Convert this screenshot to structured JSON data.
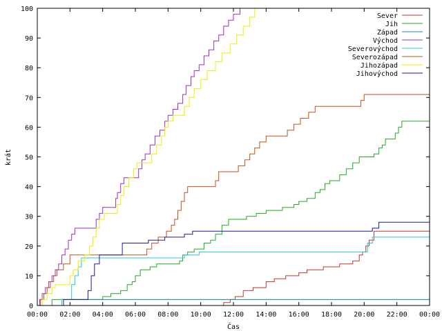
{
  "chart_data": {
    "type": "line",
    "xlabel": "Čas",
    "ylabel": "krát",
    "xlim": [
      0,
      24
    ],
    "ylim": [
      0,
      100
    ],
    "x_ticks": [
      {
        "v": 0,
        "label": "00:00"
      },
      {
        "v": 2,
        "label": "02:00"
      },
      {
        "v": 4,
        "label": "04:00"
      },
      {
        "v": 6,
        "label": "06:00"
      },
      {
        "v": 8,
        "label": "08:00"
      },
      {
        "v": 10,
        "label": "10:00"
      },
      {
        "v": 12,
        "label": "12:00"
      },
      {
        "v": 14,
        "label": "14:00"
      },
      {
        "v": 16,
        "label": "16:00"
      },
      {
        "v": 18,
        "label": "18:00"
      },
      {
        "v": 20,
        "label": "20:00"
      },
      {
        "v": 22,
        "label": "22:00"
      },
      {
        "v": 24,
        "label": "00:00"
      }
    ],
    "y_ticks": [
      0,
      10,
      20,
      30,
      40,
      50,
      60,
      70,
      80,
      90,
      100
    ],
    "grid": false,
    "legend_position": "top-right",
    "series": [
      {
        "name": "Sever",
        "color": "#c0392b",
        "points": [
          [
            11.2,
            0
          ],
          [
            11.4,
            1
          ],
          [
            11.8,
            2
          ],
          [
            12.1,
            3
          ],
          [
            12.6,
            5
          ],
          [
            13.2,
            6
          ],
          [
            14.0,
            8
          ],
          [
            14.5,
            9
          ],
          [
            15.2,
            10
          ],
          [
            16.0,
            11
          ],
          [
            16.5,
            12
          ],
          [
            17.5,
            13
          ],
          [
            18.5,
            14
          ],
          [
            19.3,
            15
          ],
          [
            19.7,
            17
          ],
          [
            19.9,
            18
          ],
          [
            20.1,
            20
          ],
          [
            20.3,
            22
          ],
          [
            20.6,
            25
          ],
          [
            24,
            25
          ]
        ]
      },
      {
        "name": "Jih",
        "color": "#22aa22",
        "points": [
          [
            0.6,
            0
          ],
          [
            0.9,
            2
          ],
          [
            3.8,
            2
          ],
          [
            4.0,
            3
          ],
          [
            4.5,
            4
          ],
          [
            5.1,
            5
          ],
          [
            5.5,
            7
          ],
          [
            5.8,
            8
          ],
          [
            6.0,
            10
          ],
          [
            6.3,
            12
          ],
          [
            6.9,
            13
          ],
          [
            7.3,
            14
          ],
          [
            8.7,
            15
          ],
          [
            8.9,
            17
          ],
          [
            9.2,
            18
          ],
          [
            9.6,
            19
          ],
          [
            10.2,
            21
          ],
          [
            10.6,
            22
          ],
          [
            10.9,
            24
          ],
          [
            11.3,
            27
          ],
          [
            11.7,
            29
          ],
          [
            12.8,
            30
          ],
          [
            13.4,
            31
          ],
          [
            14.0,
            32
          ],
          [
            15.0,
            33
          ],
          [
            15.7,
            34
          ],
          [
            16.0,
            35
          ],
          [
            16.5,
            36
          ],
          [
            17.0,
            38
          ],
          [
            17.3,
            39
          ],
          [
            17.6,
            41
          ],
          [
            17.9,
            42
          ],
          [
            18.5,
            44
          ],
          [
            18.9,
            46
          ],
          [
            19.3,
            48
          ],
          [
            19.7,
            50
          ],
          [
            20.6,
            51
          ],
          [
            20.9,
            53
          ],
          [
            21.1,
            54
          ],
          [
            21.3,
            56
          ],
          [
            21.9,
            58
          ],
          [
            22.1,
            60
          ],
          [
            22.3,
            62
          ],
          [
            24,
            62
          ]
        ]
      },
      {
        "name": "Západ",
        "color": "#0a8aa8",
        "points": [
          [
            1.4,
            0
          ],
          [
            1.5,
            2
          ],
          [
            24,
            2
          ]
        ]
      },
      {
        "name": "Východ",
        "color": "#9b30c0",
        "points": [
          [
            0,
            0
          ],
          [
            0.15,
            2
          ],
          [
            0.3,
            4
          ],
          [
            0.5,
            6
          ],
          [
            0.7,
            8
          ],
          [
            0.9,
            10
          ],
          [
            1.1,
            12
          ],
          [
            1.3,
            14
          ],
          [
            1.5,
            17
          ],
          [
            1.7,
            19
          ],
          [
            1.9,
            22
          ],
          [
            2.1,
            24
          ],
          [
            2.3,
            26
          ],
          [
            3.4,
            26
          ],
          [
            3.6,
            29
          ],
          [
            3.8,
            31
          ],
          [
            4.0,
            33
          ],
          [
            4.6,
            33
          ],
          [
            4.8,
            36
          ],
          [
            4.9,
            38
          ],
          [
            5.1,
            41
          ],
          [
            5.3,
            43
          ],
          [
            6.0,
            43
          ],
          [
            6.2,
            46
          ],
          [
            6.4,
            49
          ],
          [
            6.6,
            51
          ],
          [
            6.9,
            54
          ],
          [
            7.2,
            57
          ],
          [
            7.5,
            59
          ],
          [
            7.8,
            62
          ],
          [
            8.0,
            64
          ],
          [
            8.3,
            66
          ],
          [
            8.6,
            68
          ],
          [
            8.9,
            71
          ],
          [
            9.1,
            74
          ],
          [
            9.4,
            77
          ],
          [
            9.6,
            79
          ],
          [
            9.9,
            81
          ],
          [
            10.2,
            84
          ],
          [
            10.5,
            86
          ],
          [
            10.8,
            89
          ],
          [
            11.1,
            91
          ],
          [
            11.4,
            94
          ],
          [
            11.7,
            96
          ],
          [
            12.0,
            98
          ],
          [
            12.4,
            100
          ]
        ]
      },
      {
        "name": "Severovýchod",
        "color": "#22c8d8",
        "points": [
          [
            1.4,
            0
          ],
          [
            1.5,
            2
          ],
          [
            1.9,
            2
          ],
          [
            2.1,
            7
          ],
          [
            2.3,
            10
          ],
          [
            2.5,
            13
          ],
          [
            2.7,
            16
          ],
          [
            8.8,
            16
          ],
          [
            9.0,
            17
          ],
          [
            9.9,
            18
          ],
          [
            19.9,
            18
          ],
          [
            20.2,
            21
          ],
          [
            20.5,
            23
          ],
          [
            24,
            23
          ]
        ]
      },
      {
        "name": "Severozápad",
        "color": "#c0501c",
        "points": [
          [
            0,
            0
          ],
          [
            0.2,
            2
          ],
          [
            0.4,
            4
          ],
          [
            0.6,
            6
          ],
          [
            0.8,
            8
          ],
          [
            1.0,
            10
          ],
          [
            1.2,
            12
          ],
          [
            1.6,
            14
          ],
          [
            2.0,
            17
          ],
          [
            6.5,
            17
          ],
          [
            6.7,
            19
          ],
          [
            7.0,
            21
          ],
          [
            7.4,
            23
          ],
          [
            7.9,
            25
          ],
          [
            8.2,
            27
          ],
          [
            8.4,
            29
          ],
          [
            8.6,
            32
          ],
          [
            8.8,
            35
          ],
          [
            9.0,
            38
          ],
          [
            9.2,
            40
          ],
          [
            9.5,
            40
          ],
          [
            10.7,
            40
          ],
          [
            10.9,
            42
          ],
          [
            11.1,
            45
          ],
          [
            12.0,
            45
          ],
          [
            12.3,
            47
          ],
          [
            12.7,
            49
          ],
          [
            13.0,
            51
          ],
          [
            13.3,
            53
          ],
          [
            13.6,
            55
          ],
          [
            14.0,
            57
          ],
          [
            15.0,
            57
          ],
          [
            15.3,
            59
          ],
          [
            15.7,
            61
          ],
          [
            16.1,
            63
          ],
          [
            16.6,
            65
          ],
          [
            17.0,
            67
          ],
          [
            18.0,
            67
          ],
          [
            19.6,
            67
          ],
          [
            19.8,
            69
          ],
          [
            20.0,
            71
          ],
          [
            24,
            71
          ]
        ]
      },
      {
        "name": "Jihozápad",
        "color": "#eeee00",
        "points": [
          [
            0,
            0
          ],
          [
            0.3,
            2
          ],
          [
            0.6,
            4
          ],
          [
            0.9,
            6
          ],
          [
            1.1,
            7
          ],
          [
            1.8,
            7
          ],
          [
            2.0,
            10
          ],
          [
            2.2,
            12
          ],
          [
            2.5,
            15
          ],
          [
            2.9,
            17
          ],
          [
            3.2,
            20
          ],
          [
            3.4,
            23
          ],
          [
            3.6,
            26
          ],
          [
            3.8,
            29
          ],
          [
            4.1,
            31
          ],
          [
            4.7,
            31
          ],
          [
            4.9,
            34
          ],
          [
            5.1,
            37
          ],
          [
            5.3,
            40
          ],
          [
            5.6,
            43
          ],
          [
            5.9,
            46
          ],
          [
            6.1,
            48
          ],
          [
            6.7,
            48
          ],
          [
            7.0,
            51
          ],
          [
            7.3,
            54
          ],
          [
            7.6,
            57
          ],
          [
            7.8,
            60
          ],
          [
            8.0,
            62
          ],
          [
            8.3,
            64
          ],
          [
            8.6,
            64
          ],
          [
            9.0,
            67
          ],
          [
            9.3,
            70
          ],
          [
            9.6,
            73
          ],
          [
            10.0,
            76
          ],
          [
            10.4,
            79
          ],
          [
            10.9,
            82
          ],
          [
            11.3,
            85
          ],
          [
            11.8,
            88
          ],
          [
            12.2,
            91
          ],
          [
            12.6,
            94
          ],
          [
            13.0,
            97
          ],
          [
            13.3,
            100
          ]
        ]
      },
      {
        "name": "Jihovýchod",
        "color": "#1a1a99",
        "points": [
          [
            1.5,
            0
          ],
          [
            1.6,
            2
          ],
          [
            2.9,
            2
          ],
          [
            3.1,
            5
          ],
          [
            3.3,
            10
          ],
          [
            3.5,
            14
          ],
          [
            3.8,
            17
          ],
          [
            4.9,
            17
          ],
          [
            5.2,
            21
          ],
          [
            6.5,
            21
          ],
          [
            6.8,
            22
          ],
          [
            7.8,
            23
          ],
          [
            8.7,
            23
          ],
          [
            9.0,
            24
          ],
          [
            9.5,
            25
          ],
          [
            20.2,
            25
          ],
          [
            20.5,
            26
          ],
          [
            20.9,
            28
          ],
          [
            24,
            28
          ]
        ]
      }
    ]
  }
}
